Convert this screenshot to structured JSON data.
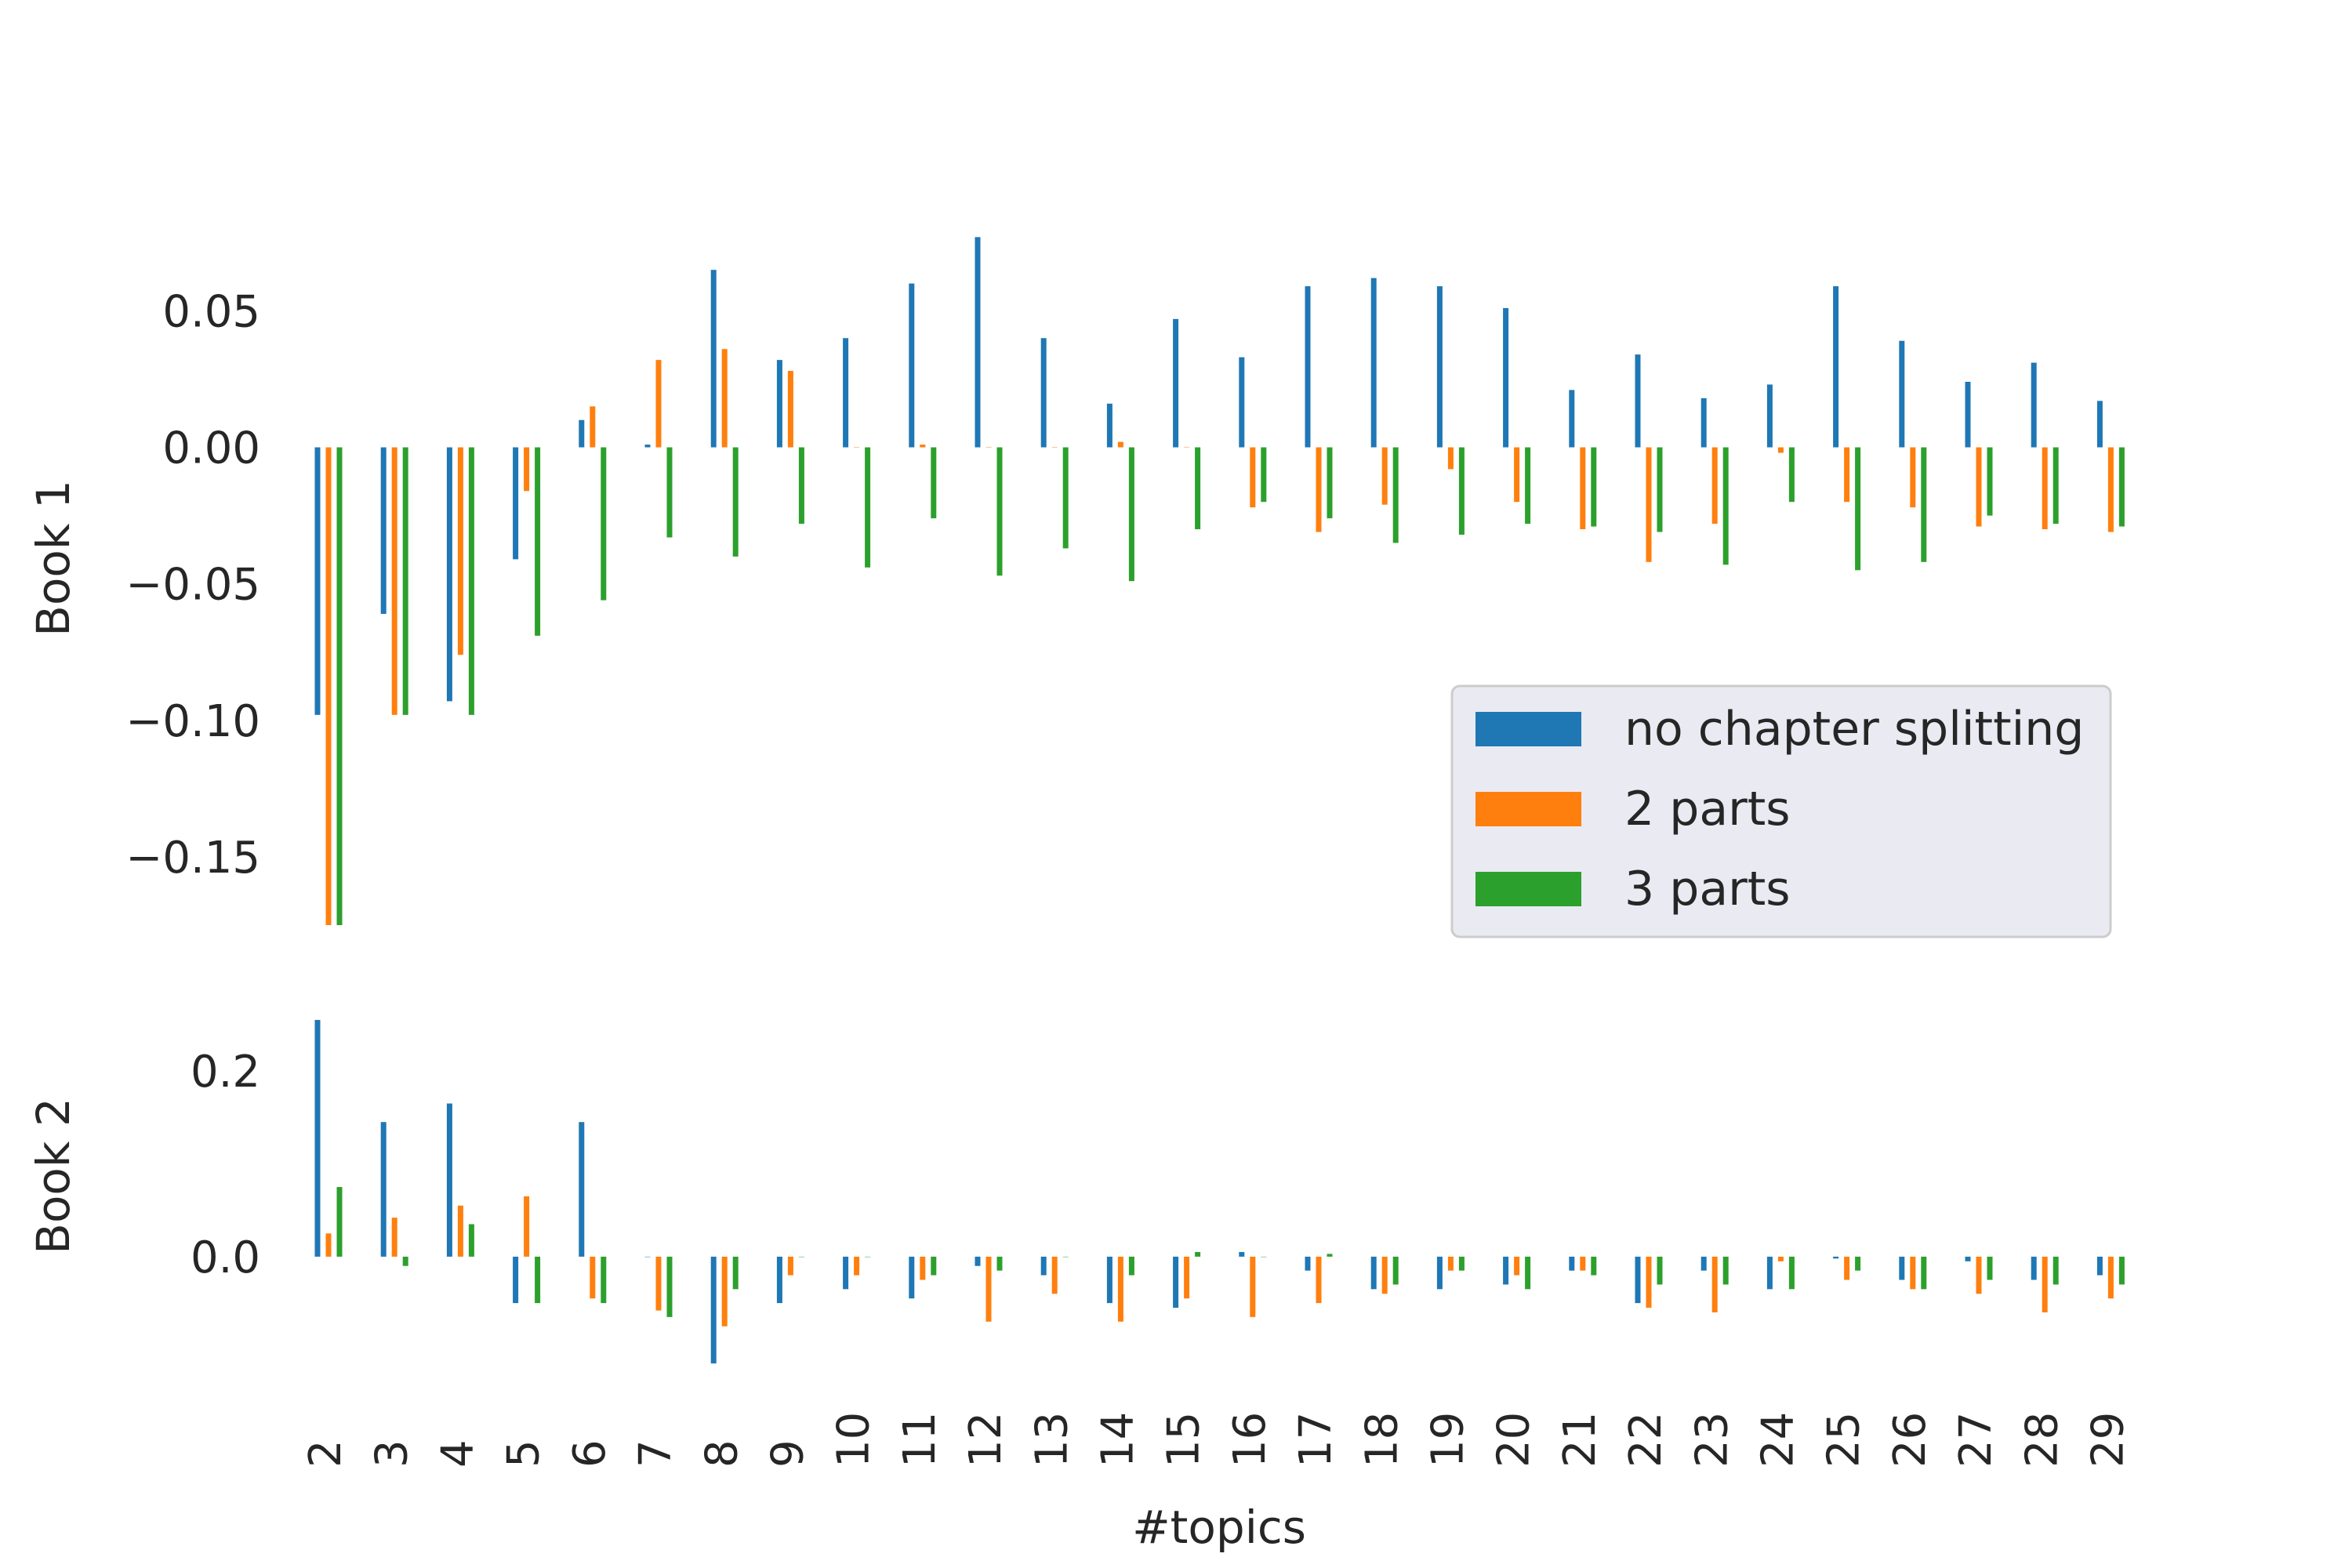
{
  "chart_data": {
    "type": "bar",
    "xlabel": "#topics",
    "categories": [
      "2",
      "3",
      "4",
      "5",
      "6",
      "7",
      "8",
      "9",
      "10",
      "11",
      "12",
      "13",
      "14",
      "15",
      "16",
      "17",
      "18",
      "19",
      "20",
      "21",
      "22",
      "23",
      "24",
      "25",
      "26",
      "27",
      "28",
      "29"
    ],
    "colors": {
      "no chapter splitting": "#1f77b4",
      "2 parts": "#ff7f0e",
      "3 parts": "#2ca02c",
      "legend_bg": "#eaeaf2",
      "text": "#262626"
    },
    "legend": {
      "placement": "center-right, upper panel",
      "entries": [
        "no chapter splitting",
        "2 parts",
        "3 parts"
      ]
    },
    "panels": [
      {
        "ylabel": "Book 1",
        "ylim": [
          -0.175,
          0.082
        ],
        "yticks": [
          -0.15,
          -0.1,
          -0.05,
          0.0,
          0.05
        ],
        "ytick_labels": [
          "−0.15",
          "−0.10",
          "−0.05",
          "0.00",
          "0.05"
        ],
        "grid": false,
        "series": [
          {
            "name": "no chapter splitting",
            "values": [
              -0.098,
              -0.061,
              -0.093,
              -0.041,
              0.01,
              0.001,
              0.065,
              0.032,
              0.04,
              0.06,
              0.077,
              0.04,
              0.016,
              0.047,
              0.033,
              0.059,
              0.062,
              0.059,
              0.051,
              0.021,
              0.034,
              0.018,
              0.023,
              0.059,
              0.039,
              0.024,
              0.031,
              0.017
            ]
          },
          {
            "name": "2 parts",
            "values": [
              -0.175,
              -0.098,
              -0.076,
              -0.016,
              0.015,
              0.032,
              0.036,
              0.028,
              0.0,
              0.001,
              0.0,
              0.0,
              0.002,
              0.0,
              -0.022,
              -0.031,
              -0.021,
              -0.008,
              -0.02,
              -0.03,
              -0.042,
              -0.028,
              -0.002,
              -0.02,
              -0.022,
              -0.029,
              -0.03,
              -0.031
            ]
          },
          {
            "name": "3 parts",
            "values": [
              -0.175,
              -0.098,
              -0.098,
              -0.069,
              -0.056,
              -0.033,
              -0.04,
              -0.028,
              -0.044,
              -0.026,
              -0.047,
              -0.037,
              -0.049,
              -0.03,
              -0.02,
              -0.026,
              -0.035,
              -0.032,
              -0.028,
              -0.029,
              -0.031,
              -0.043,
              -0.02,
              -0.045,
              -0.042,
              -0.025,
              -0.028,
              -0.029
            ]
          }
        ]
      },
      {
        "ylabel": "Book 2",
        "ylim": [
          -0.12,
          0.26
        ],
        "yticks": [
          0.0,
          0.2
        ],
        "ytick_labels": [
          "0.0",
          "0.2"
        ],
        "grid": false,
        "series": [
          {
            "name": "no chapter splitting",
            "values": [
              0.255,
              0.145,
              0.165,
              -0.05,
              0.145,
              0.0,
              -0.115,
              -0.05,
              -0.035,
              -0.045,
              -0.01,
              -0.02,
              -0.05,
              -0.055,
              0.005,
              -0.015,
              -0.035,
              -0.035,
              -0.03,
              -0.015,
              -0.05,
              -0.015,
              -0.035,
              -0.002,
              -0.025,
              -0.005,
              -0.025,
              -0.02
            ]
          },
          {
            "name": "2 parts",
            "values": [
              0.025,
              0.042,
              0.055,
              0.065,
              -0.045,
              -0.058,
              -0.075,
              -0.02,
              -0.02,
              -0.025,
              -0.07,
              -0.04,
              -0.07,
              -0.045,
              -0.065,
              -0.05,
              -0.04,
              -0.015,
              -0.02,
              -0.015,
              -0.055,
              -0.06,
              -0.005,
              -0.025,
              -0.035,
              -0.04,
              -0.06,
              -0.045
            ]
          },
          {
            "name": "3 parts",
            "values": [
              0.075,
              -0.01,
              0.035,
              -0.05,
              -0.05,
              -0.065,
              -0.035,
              0.0,
              0.0,
              -0.02,
              -0.015,
              0.0,
              -0.02,
              0.005,
              0.0,
              0.003,
              -0.03,
              -0.015,
              -0.035,
              -0.02,
              -0.03,
              -0.03,
              -0.035,
              -0.015,
              -0.035,
              -0.025,
              -0.03,
              -0.03
            ]
          }
        ]
      }
    ]
  }
}
